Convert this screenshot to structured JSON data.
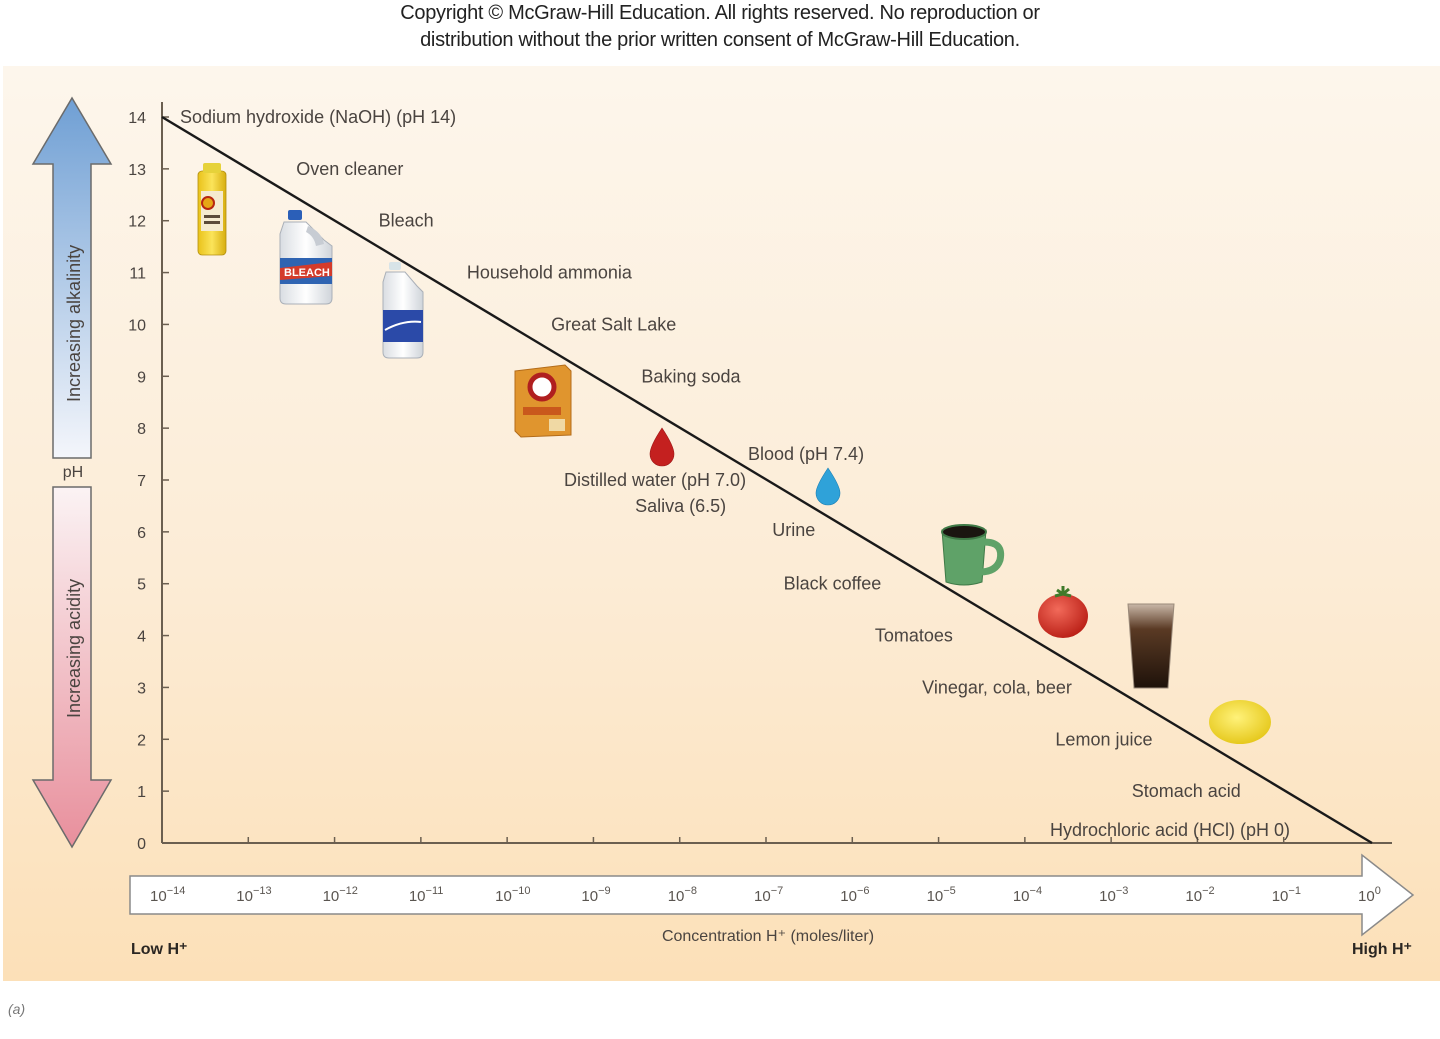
{
  "copyright": {
    "line1": "Copyright © McGraw-Hill Education. All rights reserved. No reproduction or",
    "line2": "distribution without the prior written consent of McGraw-Hill Education."
  },
  "figure_label": "(a)",
  "colors": {
    "alkaline_arrow": "#6f9fd4",
    "acid_arrow": "#e88f9c",
    "line": "#1a1a1a",
    "axis": "#6b5f50"
  },
  "chart_data": {
    "type": "line",
    "title": "",
    "ylabel": "pH",
    "xlabel": "Concentration H⁺ (moles/liter)",
    "ylim": [
      0,
      14
    ],
    "yticks": [
      "0",
      "1",
      "2",
      "3",
      "4",
      "5",
      "6",
      "7",
      "8",
      "9",
      "10",
      "11",
      "12",
      "13",
      "14"
    ],
    "xticks": [
      {
        "base": "10",
        "exp": "−14"
      },
      {
        "base": "10",
        "exp": "−13"
      },
      {
        "base": "10",
        "exp": "−12"
      },
      {
        "base": "10",
        "exp": "−11"
      },
      {
        "base": "10",
        "exp": "−10"
      },
      {
        "base": "10",
        "exp": "−9"
      },
      {
        "base": "10",
        "exp": "−8"
      },
      {
        "base": "10",
        "exp": "−7"
      },
      {
        "base": "10",
        "exp": "−6"
      },
      {
        "base": "10",
        "exp": "−5"
      },
      {
        "base": "10",
        "exp": "−4"
      },
      {
        "base": "10",
        "exp": "−3"
      },
      {
        "base": "10",
        "exp": "−2"
      },
      {
        "base": "10",
        "exp": "−1"
      },
      {
        "base": "10",
        "exp": "0"
      }
    ],
    "x_log_exponent_range": [
      -14,
      0
    ],
    "series": [
      {
        "name": "pH vs H+ concentration",
        "x_exponent": [
          -14,
          0
        ],
        "y": [
          14,
          0
        ]
      }
    ],
    "axis_arrows": {
      "alkalinity": "Increasing alkalinity",
      "acidity": "Increasing acidity",
      "low": "Low H⁺",
      "high": "High H⁺"
    },
    "annotations": [
      {
        "text": "Sodium hydroxide (NaOH) (pH 14)",
        "ph": 14
      },
      {
        "text": "Oven cleaner",
        "ph": 13
      },
      {
        "text": "Bleach",
        "ph": 12
      },
      {
        "text": "Household ammonia",
        "ph": 11
      },
      {
        "text": "Great Salt Lake",
        "ph": 10
      },
      {
        "text": "Baking soda",
        "ph": 9
      },
      {
        "text": "Blood (pH 7.4)",
        "ph": 7.4
      },
      {
        "text": "Distilled water (pH 7.0)",
        "ph": 7.0
      },
      {
        "text": "Saliva (6.5)",
        "ph": 6.5
      },
      {
        "text": "Urine",
        "ph": 6
      },
      {
        "text": "Black coffee",
        "ph": 5
      },
      {
        "text": "Tomatoes",
        "ph": 4
      },
      {
        "text": "Vinegar, cola, beer",
        "ph": 3
      },
      {
        "text": "Lemon juice",
        "ph": 2
      },
      {
        "text": "Stomach acid",
        "ph": 1
      },
      {
        "text": "Hydrochloric acid (HCl) (pH 0)",
        "ph": 0
      }
    ],
    "pictures": [
      {
        "name": "oven-cleaner-can",
        "ph": 12.4
      },
      {
        "name": "bleach-jug",
        "ph": 11.3
      },
      {
        "name": "ammonia-jug",
        "ph": 10.3
      },
      {
        "name": "baking-soda-box",
        "ph": 8.8
      },
      {
        "name": "blood-drop",
        "ph": 7.7
      },
      {
        "name": "water-drop",
        "ph": 7.1
      },
      {
        "name": "coffee-mug",
        "ph": 5.6
      },
      {
        "name": "tomato",
        "ph": 4.4
      },
      {
        "name": "cola-glass",
        "ph": 3.8
      },
      {
        "name": "lemon",
        "ph": 2.3
      }
    ]
  }
}
